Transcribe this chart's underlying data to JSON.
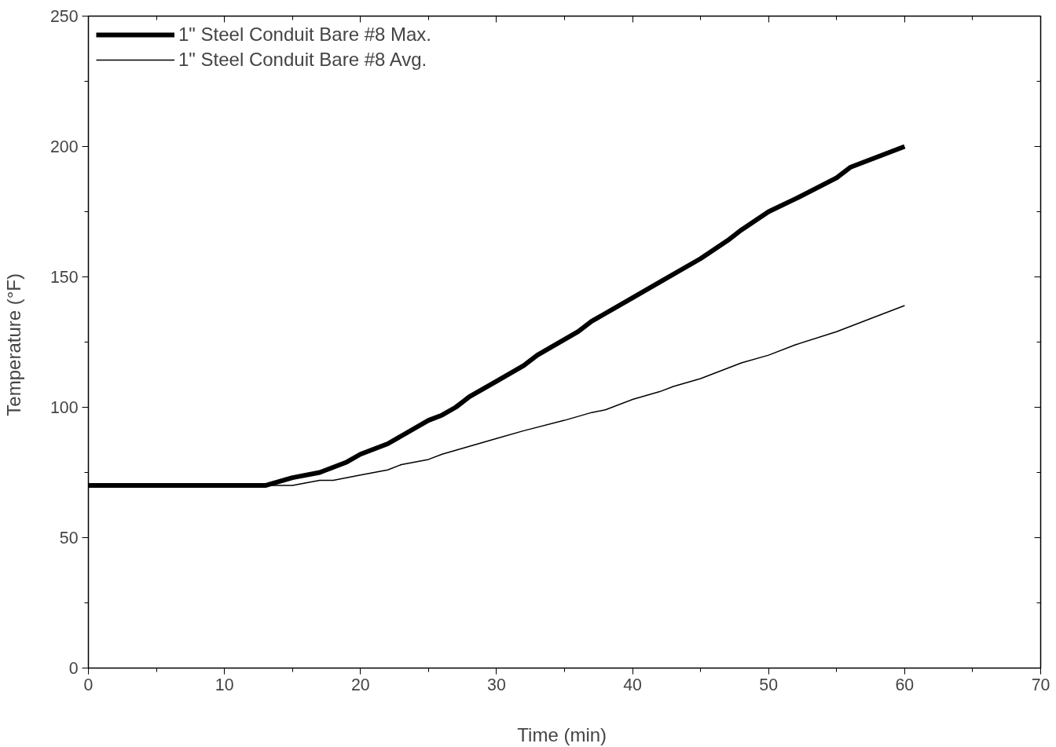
{
  "chart_data": {
    "type": "line",
    "xlabel": "Time  (min)",
    "ylabel": "Temperature  (°F)",
    "xlim": [
      0,
      70
    ],
    "ylim": [
      0,
      250
    ],
    "xticks": [
      0,
      10,
      20,
      30,
      40,
      50,
      60,
      70
    ],
    "yticks": [
      0,
      50,
      100,
      150,
      200,
      250
    ],
    "grid": false,
    "legend": "top left",
    "marker": "none",
    "line_style": "solid",
    "series": [
      {
        "name": "1\" Steel Conduit Bare #8 Max.",
        "color": "#000000",
        "x": [
          0,
          12,
          13,
          15,
          17,
          19,
          20,
          22,
          25,
          26,
          27,
          28,
          30,
          32,
          33,
          35,
          36,
          37,
          40,
          42,
          45,
          47,
          48,
          50,
          52,
          55,
          56,
          58,
          60
        ],
        "values": [
          70,
          70,
          70,
          73,
          75,
          79,
          82,
          86,
          95,
          97,
          100,
          104,
          110,
          116,
          120,
          126,
          129,
          133,
          142,
          148,
          157,
          164,
          168,
          175,
          180,
          188,
          192,
          196,
          200
        ]
      },
      {
        "name": "1\" Steel Conduit Bare #8 Avg.",
        "color": "#000000",
        "x": [
          0,
          14,
          15,
          17,
          18,
          20,
          22,
          23,
          25,
          26,
          28,
          30,
          32,
          35,
          37,
          38,
          40,
          42,
          43,
          45,
          48,
          50,
          52,
          55,
          58,
          60
        ],
        "values": [
          70,
          70,
          70,
          72,
          72,
          74,
          76,
          78,
          80,
          82,
          85,
          88,
          91,
          95,
          98,
          99,
          103,
          106,
          108,
          111,
          117,
          120,
          124,
          129,
          135,
          139
        ]
      }
    ]
  }
}
